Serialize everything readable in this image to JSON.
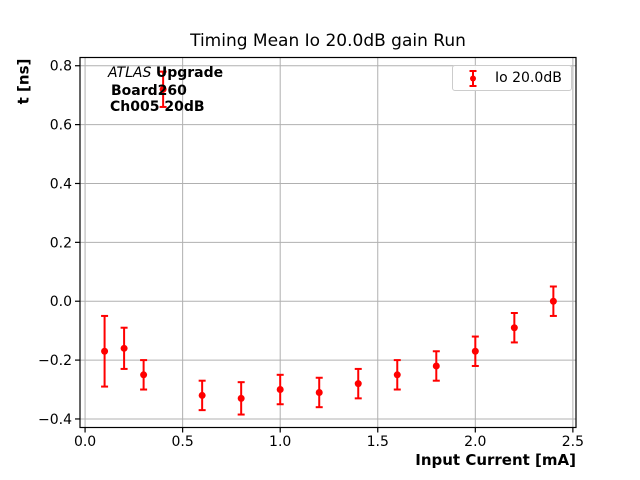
{
  "figure": {
    "title": "Timing Mean Io 20.0dB gain Run",
    "xlabel": "Input Current [mA]",
    "ylabel": "t [ns]",
    "annotation": {
      "experiment": "ATLAS",
      "tag": "Upgrade",
      "board": "Board260",
      "channel": "Ch005 20dB"
    },
    "legend": {
      "label": "Io 20.0dB"
    },
    "colors": {
      "series": "#ff0000",
      "grid": "#b0b0b0",
      "spine": "#000000",
      "legend_border": "#cccccc",
      "background": "#ffffff"
    }
  },
  "chart_data": {
    "type": "scatter",
    "title": "Timing Mean Io 20.0dB gain Run",
    "xlabel": "Input Current [mA]",
    "ylabel": "t [ns]",
    "legend": [
      "Io 20.0dB"
    ],
    "legend_position": "upper right",
    "grid": true,
    "marker": "circle",
    "error_bars": true,
    "series_color": "#ff0000",
    "x": [
      0.1,
      0.2,
      0.3,
      0.4,
      0.6,
      0.8,
      1.0,
      1.2,
      1.4,
      1.6,
      1.8,
      2.0,
      2.2,
      2.4
    ],
    "y": [
      -0.17,
      -0.16,
      -0.25,
      0.72,
      -0.32,
      -0.33,
      -0.3,
      -0.31,
      -0.28,
      -0.25,
      -0.22,
      -0.17,
      -0.09,
      0.0
    ],
    "yerr": [
      0.12,
      0.07,
      0.05,
      0.06,
      0.05,
      0.055,
      0.05,
      0.05,
      0.05,
      0.05,
      0.05,
      0.05,
      0.05,
      0.05
    ],
    "xlim": [
      -0.026,
      2.516
    ],
    "ylim": [
      -0.429,
      0.828
    ],
    "xticks": [
      0.0,
      0.5,
      1.0,
      1.5,
      2.0,
      2.5
    ],
    "yticks": [
      0.8,
      0.6,
      0.4,
      0.2,
      0.0,
      -0.2,
      -0.4
    ]
  }
}
